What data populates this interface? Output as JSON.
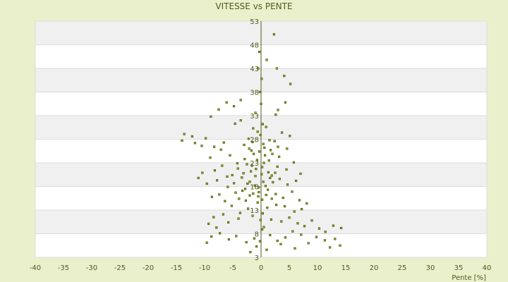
{
  "chart_data": {
    "type": "scatter",
    "title": "VITESSE vs PENTE",
    "xlabel": "Pente [%]",
    "ylabel": "",
    "xlim": [
      -40,
      40
    ],
    "ylim": [
      3,
      53
    ],
    "x_ticks": [
      "-40",
      "-35",
      "-30",
      "-25",
      "-20",
      "-15",
      "-10",
      "-5",
      "0",
      "5",
      "10",
      "15",
      "20",
      "25",
      "30",
      "35",
      "40"
    ],
    "y_ticks": [
      "3",
      "8",
      "13",
      "18",
      "23",
      "28",
      "33",
      "38",
      "43",
      "48",
      "53"
    ],
    "grid": true,
    "grid_style": "horizontal alternating bands",
    "colors": {
      "background": "#eaf0cc",
      "plot_band_light": "#ffffff",
      "plot_band_dark": "#f0f0f0",
      "marker_fill": "#9aa62a",
      "marker_edge": "#3d4a00",
      "axis": "#4d5a1e"
    },
    "series": [
      {
        "points": [
          [
            2.3,
            50.2
          ],
          [
            1.0,
            44.8
          ],
          [
            2.8,
            43.0
          ],
          [
            -0.3,
            46.5
          ],
          [
            4.1,
            41.4
          ],
          [
            5.2,
            39.7
          ],
          [
            -0.5,
            43.0
          ],
          [
            0.1,
            40.8
          ],
          [
            -3.6,
            36.3
          ],
          [
            -4.8,
            35.0
          ],
          [
            4.3,
            35.8
          ],
          [
            -7.5,
            34.3
          ],
          [
            -6.1,
            35.8
          ],
          [
            3.0,
            34.2
          ],
          [
            2.6,
            33.2
          ],
          [
            -3.6,
            32.0
          ],
          [
            -1.0,
            33.6
          ],
          [
            -4.6,
            31.3
          ],
          [
            -8.9,
            32.8
          ],
          [
            -1.4,
            30.3
          ],
          [
            0.9,
            30.6
          ],
          [
            -13.6,
            29.1
          ],
          [
            -14.0,
            27.7
          ],
          [
            -12.2,
            28.6
          ],
          [
            -11.7,
            27.2
          ],
          [
            -10.5,
            26.6
          ],
          [
            -9.8,
            28.2
          ],
          [
            -8.3,
            26.4
          ],
          [
            -7.1,
            25.8
          ],
          [
            -9.0,
            24.1
          ],
          [
            -6.6,
            27.3
          ],
          [
            -5.5,
            24.6
          ],
          [
            -3.0,
            26.8
          ],
          [
            -2.2,
            28.1
          ],
          [
            2.4,
            27.6
          ],
          [
            3.7,
            29.4
          ],
          [
            5.1,
            28.7
          ],
          [
            4.6,
            26.0
          ],
          [
            3.2,
            24.3
          ],
          [
            1.7,
            25.7
          ],
          [
            -1.3,
            24.9
          ],
          [
            0.6,
            26.2
          ],
          [
            -0.7,
            23.6
          ],
          [
            -2.5,
            22.7
          ],
          [
            -4.1,
            21.8
          ],
          [
            -6.9,
            22.4
          ],
          [
            -8.2,
            21.4
          ],
          [
            -10.4,
            20.9
          ],
          [
            -11.1,
            19.8
          ],
          [
            -9.6,
            18.6
          ],
          [
            -7.8,
            19.3
          ],
          [
            -6.0,
            20.1
          ],
          [
            -3.4,
            19.9
          ],
          [
            -1.8,
            21.2
          ],
          [
            0.2,
            22.1
          ],
          [
            1.4,
            23.5
          ],
          [
            2.9,
            22.2
          ],
          [
            4.5,
            21.6
          ],
          [
            5.8,
            23.1
          ],
          [
            7.0,
            20.7
          ],
          [
            6.2,
            19.2
          ],
          [
            4.7,
            18.4
          ],
          [
            3.3,
            19.6
          ],
          [
            1.9,
            20.3
          ],
          [
            0.4,
            19.0
          ],
          [
            -1.1,
            18.2
          ],
          [
            -2.8,
            17.5
          ],
          [
            -4.5,
            16.7
          ],
          [
            -5.9,
            17.9
          ],
          [
            -7.4,
            16.3
          ],
          [
            -8.7,
            15.8
          ],
          [
            -6.4,
            14.9
          ],
          [
            -3.9,
            15.4
          ],
          [
            -2.0,
            16.1
          ],
          [
            -0.4,
            16.8
          ],
          [
            1.2,
            17.3
          ],
          [
            2.6,
            16.4
          ],
          [
            3.9,
            15.6
          ],
          [
            5.5,
            16.9
          ],
          [
            6.8,
            15.1
          ],
          [
            8.1,
            14.4
          ],
          [
            7.2,
            13.2
          ],
          [
            5.9,
            12.7
          ],
          [
            4.2,
            13.8
          ],
          [
            2.7,
            14.1
          ],
          [
            1.1,
            13.5
          ],
          [
            -0.6,
            14.6
          ],
          [
            -2.3,
            13.3
          ],
          [
            -3.7,
            12.4
          ],
          [
            -5.2,
            13.9
          ],
          [
            -6.7,
            12.1
          ],
          [
            -8.4,
            11.5
          ],
          [
            -9.3,
            10.1
          ],
          [
            -7.9,
            9.3
          ],
          [
            -5.8,
            10.4
          ],
          [
            -4.0,
            11.2
          ],
          [
            -1.5,
            11.8
          ],
          [
            0.3,
            12.3
          ],
          [
            1.8,
            11.0
          ],
          [
            3.6,
            10.6
          ],
          [
            5.0,
            11.4
          ],
          [
            6.5,
            10.2
          ],
          [
            7.7,
            9.6
          ],
          [
            9.0,
            10.8
          ],
          [
            10.3,
            9.1
          ],
          [
            11.4,
            8.4
          ],
          [
            12.8,
            9.7
          ],
          [
            14.2,
            9.2
          ],
          [
            13.1,
            6.9
          ],
          [
            14.0,
            5.5
          ],
          [
            12.2,
            5.1
          ],
          [
            11.3,
            6.6
          ],
          [
            9.8,
            7.3
          ],
          [
            8.4,
            6.0
          ],
          [
            7.1,
            7.8
          ],
          [
            5.6,
            8.5
          ],
          [
            4.3,
            7.2
          ],
          [
            2.9,
            6.5
          ],
          [
            1.6,
            7.7
          ],
          [
            0.2,
            8.9
          ],
          [
            -1.2,
            7.0
          ],
          [
            -2.6,
            6.2
          ],
          [
            -4.4,
            7.5
          ],
          [
            -5.7,
            6.8
          ],
          [
            -7.3,
            8.1
          ],
          [
            -8.8,
            7.4
          ],
          [
            -9.6,
            6.1
          ],
          [
            -0.8,
            5.3
          ],
          [
            1.0,
            4.6
          ],
          [
            -1.9,
            4.1
          ],
          [
            3.5,
            5.8
          ],
          [
            6.0,
            4.9
          ],
          [
            0.0,
            35.5
          ],
          [
            -0.2,
            38.0
          ],
          [
            0.3,
            31.2
          ],
          [
            -0.1,
            28.9
          ],
          [
            0.4,
            27.0
          ],
          [
            -0.3,
            25.4
          ],
          [
            0.1,
            20.6
          ],
          [
            -0.4,
            17.8
          ],
          [
            0.2,
            15.2
          ],
          [
            -0.1,
            10.9
          ],
          [
            0.5,
            9.4
          ],
          [
            -0.2,
            6.4
          ],
          [
            -2.0,
            19.0
          ],
          [
            -1.0,
            20.2
          ],
          [
            -3.1,
            20.8
          ],
          [
            -2.4,
            18.6
          ],
          [
            -1.6,
            22.4
          ],
          [
            -0.9,
            21.7
          ],
          [
            1.3,
            21.0
          ],
          [
            2.1,
            18.9
          ],
          [
            0.8,
            18.1
          ],
          [
            1.6,
            19.8
          ],
          [
            2.5,
            20.9
          ],
          [
            0.5,
            23.0
          ],
          [
            -1.4,
            16.5
          ],
          [
            -0.5,
            15.9
          ],
          [
            0.9,
            16.2
          ],
          [
            1.9,
            15.4
          ],
          [
            -2.7,
            15.0
          ],
          [
            -3.3,
            17.1
          ],
          [
            -4.8,
            18.7
          ],
          [
            -5.1,
            20.4
          ],
          [
            -4.2,
            22.9
          ],
          [
            -2.9,
            23.8
          ],
          [
            -1.7,
            25.6
          ],
          [
            0.7,
            24.6
          ],
          [
            2.0,
            24.9
          ],
          [
            3.0,
            26.4
          ],
          [
            1.5,
            27.8
          ],
          [
            -0.6,
            29.6
          ],
          [
            -1.5,
            27.4
          ],
          [
            -2.1,
            26.0
          ]
        ]
      }
    ]
  }
}
